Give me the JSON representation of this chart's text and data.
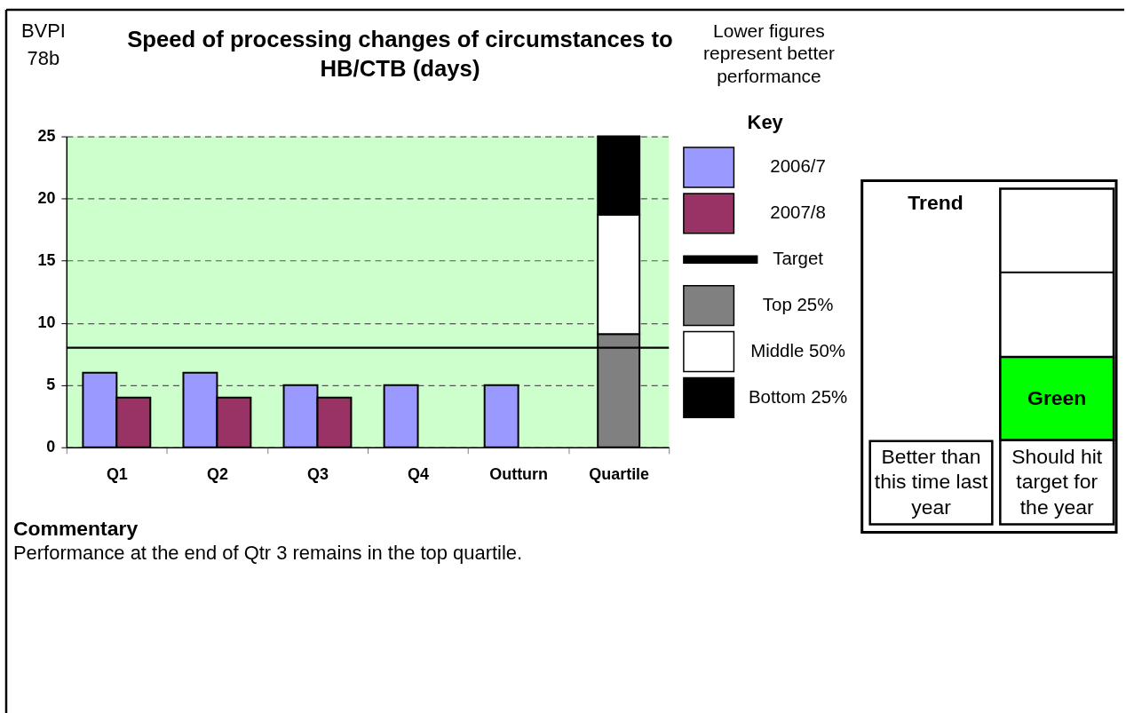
{
  "chart_data": [
    {
      "type": "bar",
      "title": "Speed of processing changes of circumstances to HB/CTB (days)",
      "legend_title": "Key",
      "categories": [
        "Q1",
        "Q2",
        "Q3",
        "Q4",
        "Outturn",
        "Quartile"
      ],
      "series": [
        {
          "name": "2006/7",
          "color": "#9999ff",
          "values": [
            6,
            6,
            5,
            5,
            5,
            null
          ]
        },
        {
          "name": "2007/8",
          "color": "#993366",
          "values": [
            4,
            4,
            4,
            null,
            null,
            null
          ]
        },
        {
          "name": "Top 25%",
          "color": "#808080",
          "values": [
            null,
            null,
            null,
            null,
            null,
            9.1
          ],
          "base": [
            null,
            null,
            null,
            null,
            null,
            0
          ]
        },
        {
          "name": "Middle 50%",
          "color": "#ffffff",
          "values": [
            null,
            null,
            null,
            null,
            null,
            9.6
          ],
          "base": [
            null,
            null,
            null,
            null,
            null,
            9.1
          ]
        },
        {
          "name": "Bottom 25%",
          "color": "#000000",
          "values": [
            null,
            null,
            null,
            null,
            null,
            6.3
          ],
          "base": [
            null,
            null,
            null,
            null,
            null,
            18.7
          ]
        }
      ],
      "ylim": [
        0,
        25
      ],
      "yticks": [
        0,
        5,
        10,
        15,
        20,
        25
      ],
      "grid": "y",
      "legend": "right",
      "ref_lines": [
        {
          "axis": "y",
          "value": 8,
          "label": "Target",
          "color": "#000000"
        }
      ],
      "annotations": [
        "BVPI 78b",
        "Lower figures represent better performance",
        "Commentary",
        "Performance at the end of Qtr 3 remains in the top quartile."
      ]
    },
    {
      "type": "other",
      "title": "Trend",
      "annotations": [
        "Better than this time last year",
        "Green",
        "Should hit target for the year"
      ]
    }
  ]
}
